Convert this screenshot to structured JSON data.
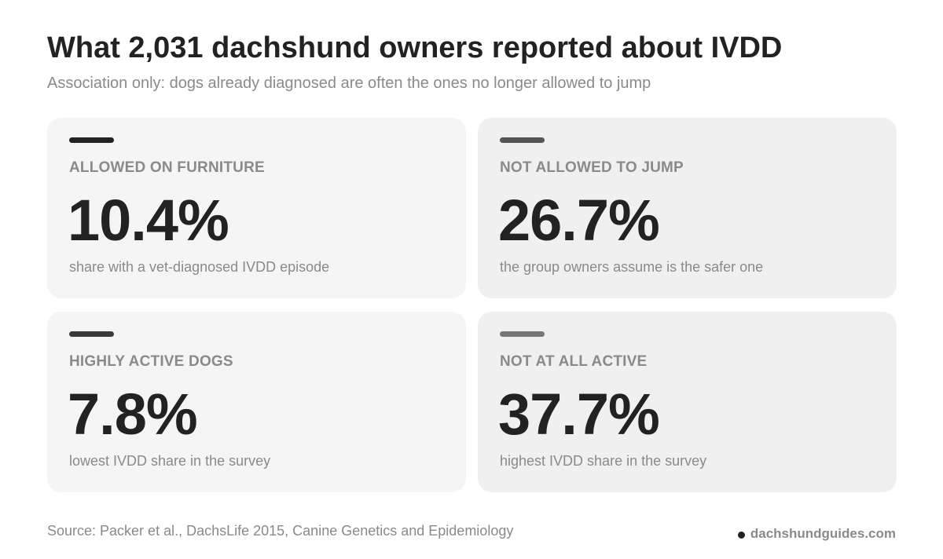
{
  "header": {
    "title": "What 2,031 dachshund owners reported about IVDD",
    "subtitle": "Association only: dogs already diagnosed are often the ones no longer allowed to jump"
  },
  "cards": [
    {
      "label": "ALLOWED ON FURNITURE",
      "value": "10.4%",
      "description": "share with a vet-diagnosed IVDD episode",
      "accent_color": "#222222"
    },
    {
      "label": "NOT ALLOWED TO JUMP",
      "value": "26.7%",
      "description": "the group owners assume is the safer one",
      "accent_color": "#555555"
    },
    {
      "label": "HIGHLY ACTIVE DOGS",
      "value": "7.8%",
      "description": "lowest IVDD share in the survey",
      "accent_color": "#3a3a3a"
    },
    {
      "label": "NOT AT ALL ACTIVE",
      "value": "37.7%",
      "description": "highest IVDD share in the survey",
      "accent_color": "#777777"
    }
  ],
  "footer": {
    "source": "Source: Packer et al., DachsLife 2015, Canine Genetics and Epidemiology",
    "brand": "dachshundguides.com"
  }
}
